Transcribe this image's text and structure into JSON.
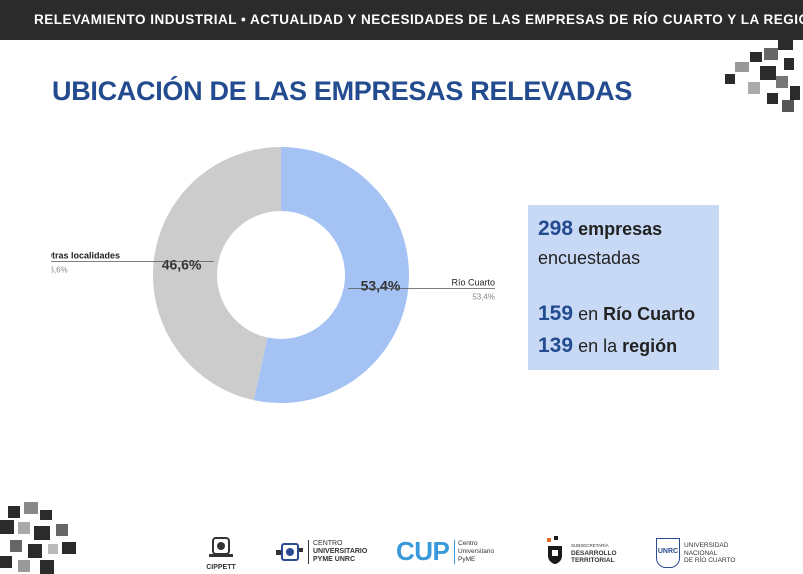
{
  "header": {
    "text": "RELEVAMIENTO INDUSTRIAL • ACTUALIDAD Y NECESIDADES DE LAS EMPRESAS DE RÍO CUARTO Y LA REGIÓN"
  },
  "page_title": "UBICACIÓN DE LAS EMPRESAS RELEVADAS",
  "chart_data": {
    "type": "pie",
    "donut": true,
    "slices": [
      {
        "label": "Río Cuarto",
        "value": 53.4,
        "value_label": "53,4%",
        "color": "#a4c2f4"
      },
      {
        "label": "Otras localidades",
        "value": 46.6,
        "value_label": "46,6%",
        "color": "#cccccc"
      }
    ]
  },
  "info": {
    "total_num": "298",
    "total_word": "empresas",
    "total_rest": "encuestadas",
    "rc_num": "159",
    "rc_pre": "en",
    "rc_place": "Río Cuarto",
    "reg_num": "139",
    "reg_pre": "en la",
    "reg_place": "región"
  },
  "footer": {
    "cippett": "CIPPETT",
    "cu_line1": "CENTRO",
    "cu_line2": "UNIVERSITARIO",
    "cu_line3": "PYME UNRC",
    "cup": "CUP",
    "cup_line1": "Centro",
    "cup_line2": "Universitario",
    "cup_line3": "PyME",
    "sdt_line1": "SUBSECRETARÍA",
    "sdt_line2": "DESARROLLO",
    "sdt_line3": "TERRITORIAL",
    "unrc_badge": "UNRC",
    "unrc_line1": "UNIVERSIDAD",
    "unrc_line2": "NACIONAL",
    "unrc_line3": "DE RÍO CUARTO"
  }
}
